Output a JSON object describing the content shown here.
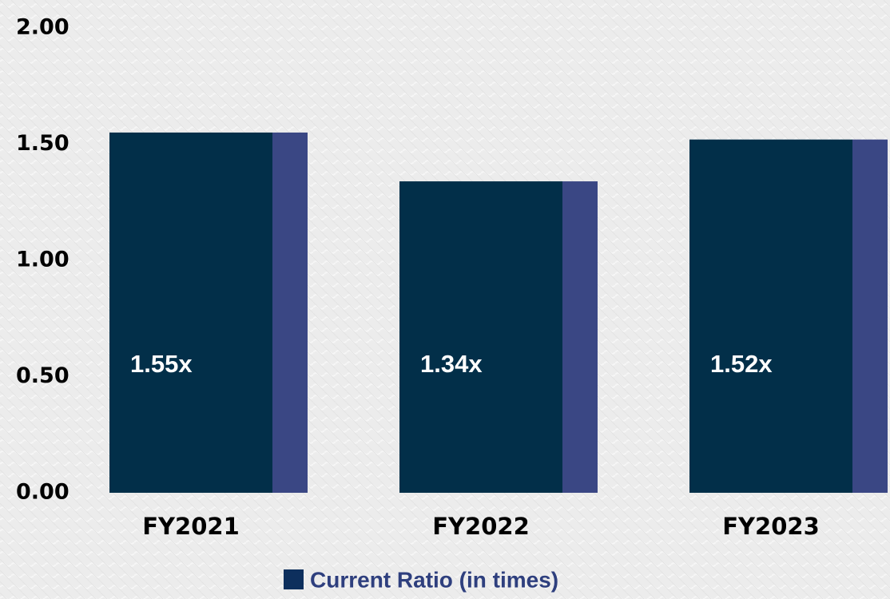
{
  "chart_data": {
    "type": "bar",
    "categories": [
      "FY2021",
      "FY2022",
      "FY2023"
    ],
    "series": [
      {
        "name": "Current Ratio (in times)",
        "color": "#022f49",
        "values": [
          1.55,
          1.34,
          1.52
        ],
        "value_labels": [
          "1.55x",
          "1.34x",
          "1.52x"
        ]
      }
    ],
    "ylim": [
      0,
      2
    ],
    "yticks": [
      {
        "value": 0,
        "label": "0.00"
      },
      {
        "value": 0.5,
        "label": "0.50"
      },
      {
        "value": 1,
        "label": "1.00"
      },
      {
        "value": 1.5,
        "label": "1.50"
      },
      {
        "value": 2,
        "label": "2.00"
      }
    ],
    "grid": false,
    "legend": "bottom"
  }
}
